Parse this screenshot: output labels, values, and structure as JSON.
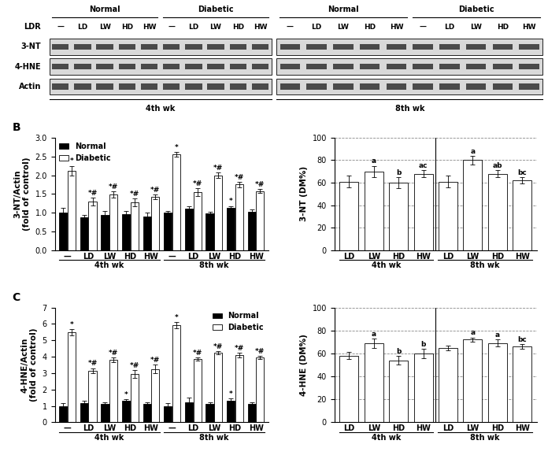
{
  "blot": {
    "lane_header": "LDR",
    "rows": [
      "3-NT",
      "4-HNE",
      "Actin"
    ],
    "blocks": [
      {
        "label": "4th wk",
        "groups": [
          {
            "name": "Normal",
            "lanes": [
              "—",
              "LD",
              "LW",
              "HD",
              "HW"
            ]
          },
          {
            "name": "Diabetic",
            "lanes": [
              "—",
              "LD",
              "LW",
              "HD",
              "HW"
            ]
          }
        ]
      },
      {
        "label": "8th wk",
        "groups": [
          {
            "name": "Normal",
            "lanes": [
              "—",
              "LD",
              "LW",
              "HD",
              "HW"
            ]
          },
          {
            "name": "Diabetic",
            "lanes": [
              "—",
              "LD",
              "LW",
              "HD",
              "HW"
            ]
          }
        ]
      }
    ]
  },
  "chart_data": [
    {
      "type": "bar",
      "title": "B",
      "ylabel": "3-NT/Actin\n(fold of control)",
      "groups": [
        {
          "label": "4th wk",
          "categories": [
            "—",
            "LD",
            "LW",
            "HD",
            "HW"
          ]
        },
        {
          "label": "8th wk",
          "categories": [
            "—",
            "LD",
            "LW",
            "HD",
            "HW"
          ]
        }
      ],
      "ylim": [
        0,
        3
      ],
      "yticks": [
        {
          "value": 0,
          "label": "0.0"
        },
        0.5,
        {
          "value": 1,
          "label": "1.0"
        },
        1.5,
        {
          "value": 2,
          "label": "2.0"
        },
        2.5,
        {
          "value": 3,
          "label": "3.0"
        }
      ],
      "legend": "upper left",
      "grid": false,
      "series": [
        {
          "name": "Normal",
          "color": "#000000",
          "values": [
            1.0,
            0.88,
            0.95,
            0.97,
            0.9,
            1.0,
            1.1,
            0.98,
            1.13,
            1.02
          ],
          "error": [
            0.12,
            0.05,
            0.1,
            0.08,
            0.1,
            0.05,
            0.08,
            0.04,
            0.05,
            0.06
          ],
          "annotations": [
            null,
            null,
            null,
            null,
            null,
            null,
            null,
            null,
            "*",
            null
          ]
        },
        {
          "name": "Diabetic",
          "color": "#ffffff",
          "values": [
            2.12,
            1.3,
            1.48,
            1.28,
            1.43,
            2.55,
            1.55,
            2.0,
            1.75,
            1.58
          ],
          "error": [
            0.13,
            0.1,
            0.08,
            0.1,
            0.06,
            0.06,
            0.1,
            0.08,
            0.07,
            0.06
          ],
          "annotations": [
            "*",
            "*#",
            "*#",
            "*#",
            "*#",
            "*",
            "*#",
            "*#",
            "*#",
            "*#"
          ]
        }
      ]
    },
    {
      "type": "bar",
      "ylabel": "3-NT (DM%)",
      "groups": [
        {
          "label": "4th wk",
          "categories": [
            "LD",
            "LW",
            "HD",
            "HW"
          ]
        },
        {
          "label": "8th wk",
          "categories": [
            "LD",
            "LW",
            "HD",
            "HW"
          ]
        }
      ],
      "ylim": [
        0,
        100
      ],
      "yticks": [
        0,
        20,
        40,
        60,
        80,
        100
      ],
      "grid": true,
      "series": [
        {
          "color": "#ffffff",
          "values": [
            61,
            70,
            60,
            68,
            61,
            80,
            68,
            62
          ],
          "error": [
            5,
            5,
            5,
            3,
            5,
            4,
            3,
            3
          ],
          "annotations": [
            null,
            "a",
            "b",
            "ac",
            null,
            "a",
            "ab",
            "bc"
          ]
        }
      ]
    },
    {
      "type": "bar",
      "title": "C",
      "ylabel": "4-HNE/Actin\n(fold of control)",
      "groups": [
        {
          "label": "4th wk",
          "categories": [
            "—",
            "LD",
            "LW",
            "HD",
            "HW"
          ]
        },
        {
          "label": "8th wk",
          "categories": [
            "—",
            "LD",
            "LW",
            "HD",
            "HW"
          ]
        }
      ],
      "ylim": [
        0,
        7
      ],
      "yticks": [
        0,
        1,
        2,
        3,
        4,
        5,
        6,
        7
      ],
      "legend": "upper right",
      "grid": false,
      "series": [
        {
          "name": "Normal",
          "color": "#000000",
          "values": [
            1.0,
            1.15,
            1.1,
            1.3,
            1.1,
            1.0,
            1.2,
            1.1,
            1.3,
            1.1
          ],
          "error": [
            0.15,
            0.15,
            0.12,
            0.1,
            0.1,
            0.15,
            0.3,
            0.1,
            0.15,
            0.1
          ],
          "annotations": [
            null,
            null,
            null,
            "*",
            null,
            null,
            null,
            null,
            "*",
            null
          ]
        },
        {
          "name": "Diabetic",
          "color": "#ffffff",
          "values": [
            5.5,
            3.15,
            3.8,
            2.95,
            3.25,
            5.92,
            3.85,
            4.25,
            4.1,
            3.95
          ],
          "error": [
            0.2,
            0.15,
            0.15,
            0.25,
            0.25,
            0.2,
            0.1,
            0.1,
            0.15,
            0.1
          ],
          "annotations": [
            "*",
            "*#",
            "*#",
            "*#",
            "*#",
            "*",
            "*#",
            "*#",
            "*#",
            "*#"
          ]
        }
      ]
    },
    {
      "type": "bar",
      "ylabel": "4-HNE (DM%)",
      "groups": [
        {
          "label": "4th wk",
          "categories": [
            "LD",
            "LW",
            "HD",
            "HW"
          ]
        },
        {
          "label": "8th wk",
          "categories": [
            "LD",
            "LW",
            "HD",
            "HW"
          ]
        }
      ],
      "ylim": [
        0,
        100
      ],
      "yticks": [
        0,
        20,
        40,
        60,
        80,
        100
      ],
      "grid": true,
      "series": [
        {
          "color": "#ffffff",
          "values": [
            58,
            69,
            54,
            60,
            65,
            72,
            69,
            66
          ],
          "error": [
            3,
            4,
            4,
            4,
            2,
            2,
            3,
            2
          ],
          "annotations": [
            null,
            "a",
            "b",
            "b",
            null,
            "a",
            "a",
            "bc"
          ]
        }
      ]
    }
  ]
}
